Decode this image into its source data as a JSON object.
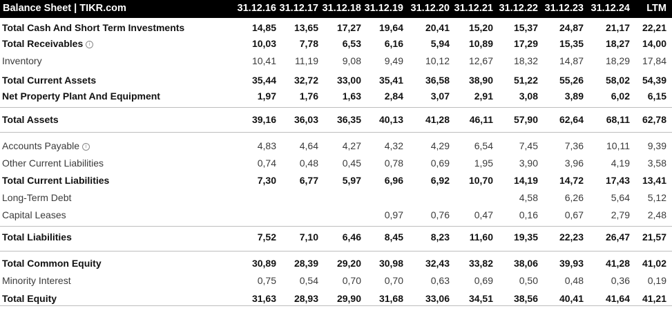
{
  "header": {
    "title": "Balance Sheet | TIKR.com",
    "columns": [
      "31.12.16",
      "31.12.17",
      "31.12.18",
      "31.12.19",
      "31.12.20",
      "31.12.21",
      "31.12.22",
      "31.12.23",
      "31.12.24",
      "LTM"
    ]
  },
  "rows": [
    {
      "label": "Total Cash And Short Term Investments",
      "bold": true,
      "values": [
        "14,85",
        "13,65",
        "17,27",
        "19,64",
        "20,41",
        "15,20",
        "15,37",
        "24,87",
        "21,17",
        "22,21"
      ]
    },
    {
      "label": "Total Receivables",
      "bold": true,
      "info_icon": "info-circle-icon",
      "values": [
        "10,03",
        "7,78",
        "6,53",
        "6,16",
        "5,94",
        "10,89",
        "17,29",
        "15,35",
        "18,27",
        "14,00"
      ]
    },
    {
      "label": "Inventory",
      "bold": false,
      "values": [
        "10,41",
        "11,19",
        "9,08",
        "9,49",
        "10,12",
        "12,67",
        "18,32",
        "14,87",
        "18,29",
        "17,84"
      ]
    },
    {
      "label": "Total Current Assets",
      "bold": true,
      "values": [
        "35,44",
        "32,72",
        "33,00",
        "35,41",
        "36,58",
        "38,90",
        "51,22",
        "55,26",
        "58,02",
        "54,39"
      ]
    },
    {
      "label": "Net Property Plant And Equipment",
      "bold": true,
      "values": [
        "1,97",
        "1,76",
        "1,63",
        "2,84",
        "3,07",
        "2,91",
        "3,08",
        "3,89",
        "6,02",
        "6,15"
      ]
    },
    {
      "label": "Total Assets",
      "bold": true,
      "values": [
        "39,16",
        "36,03",
        "36,35",
        "40,13",
        "41,28",
        "46,11",
        "57,90",
        "62,64",
        "68,11",
        "62,78"
      ]
    },
    {
      "label": "Accounts Payable",
      "bold": false,
      "info_icon": "info-circle-icon",
      "values": [
        "4,83",
        "4,64",
        "4,27",
        "4,32",
        "4,29",
        "6,54",
        "7,45",
        "7,36",
        "10,11",
        "9,39"
      ]
    },
    {
      "label": "Other Current Liabilities",
      "bold": false,
      "values": [
        "0,74",
        "0,48",
        "0,45",
        "0,78",
        "0,69",
        "1,95",
        "3,90",
        "3,96",
        "4,19",
        "3,58"
      ]
    },
    {
      "label": "Total Current Liabilities",
      "bold": true,
      "values": [
        "7,30",
        "6,77",
        "5,97",
        "6,96",
        "6,92",
        "10,70",
        "14,19",
        "14,72",
        "17,43",
        "13,41"
      ]
    },
    {
      "label": "Long-Term Debt",
      "bold": false,
      "values": [
        "",
        "",
        "",
        "",
        "",
        "",
        "4,58",
        "6,26",
        "5,64",
        "5,12"
      ]
    },
    {
      "label": "Capital Leases",
      "bold": false,
      "values": [
        "",
        "",
        "",
        "0,97",
        "0,76",
        "0,47",
        "0,16",
        "0,67",
        "2,79",
        "2,48"
      ]
    },
    {
      "label": "Total Liabilities",
      "bold": true,
      "values": [
        "7,52",
        "7,10",
        "6,46",
        "8,45",
        "8,23",
        "11,60",
        "19,35",
        "22,23",
        "26,47",
        "21,57"
      ]
    },
    {
      "label": "Total Common Equity",
      "bold": true,
      "values": [
        "30,89",
        "28,39",
        "29,20",
        "30,98",
        "32,43",
        "33,82",
        "38,06",
        "39,93",
        "41,28",
        "41,02"
      ]
    },
    {
      "label": "Minority Interest",
      "bold": false,
      "values": [
        "0,75",
        "0,54",
        "0,70",
        "0,70",
        "0,63",
        "0,69",
        "0,50",
        "0,48",
        "0,36",
        "0,19"
      ]
    },
    {
      "label": "Total Equity",
      "bold": true,
      "values": [
        "31,63",
        "28,93",
        "29,90",
        "31,68",
        "33,06",
        "34,51",
        "38,56",
        "40,41",
        "41,64",
        "41,21"
      ]
    }
  ]
}
